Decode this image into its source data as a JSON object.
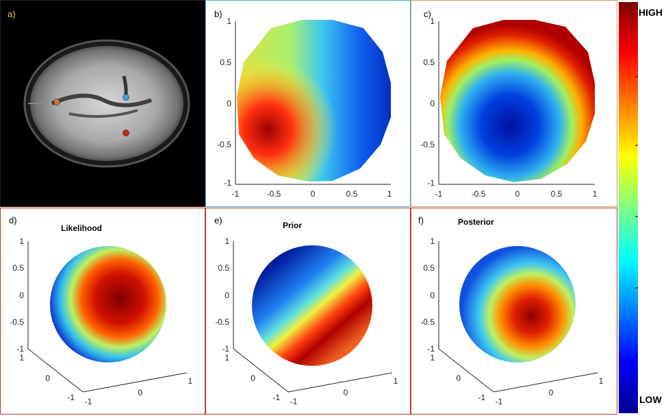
{
  "panels": {
    "a": {
      "label": "a)"
    },
    "b": {
      "label": "b)",
      "yticks": [
        "1",
        "0.5",
        "0",
        "-0.5",
        "-1"
      ],
      "xticks": [
        "-1",
        "-0.5",
        "0",
        "0.5",
        "1"
      ]
    },
    "c": {
      "label": "c)",
      "yticks": [
        "1",
        "0.5",
        "0",
        "-0.5",
        "-1"
      ],
      "xticks": [
        "-1",
        "-0.5",
        "0",
        "0.5",
        "1"
      ]
    },
    "d": {
      "label": "d)",
      "title": "Likelihood",
      "zticks": [
        "1",
        "0.5",
        "0",
        "-0.5",
        "-1"
      ],
      "yticks": [
        "1",
        "0",
        "-1"
      ],
      "xticks": [
        "-1",
        "0",
        "1"
      ]
    },
    "e": {
      "label": "e)",
      "title": "Prior",
      "zticks": [
        "1",
        "0.5",
        "0",
        "-0.5",
        "-1"
      ],
      "yticks": [
        "1",
        "0",
        "-1"
      ],
      "xticks": [
        "-1",
        "0",
        "1"
      ]
    },
    "f": {
      "label": "f)",
      "title": "Posterior",
      "zticks": [
        "1",
        "0.5",
        "0",
        "-0.5",
        "-1"
      ],
      "yticks": [
        "1",
        "0",
        "-1"
      ],
      "xticks": [
        "-1",
        "0",
        "1"
      ]
    }
  },
  "colorbar": {
    "high": "HIGH",
    "low": "LOW"
  },
  "colors": {
    "border_a": "#222222",
    "border_b": "#3bb0d6",
    "border_c": "#d2a060",
    "border_def": "#c0392b",
    "dot_orange": "#c8783c",
    "dot_blue": "#3aa6e0",
    "dot_red": "#cc2020"
  }
}
